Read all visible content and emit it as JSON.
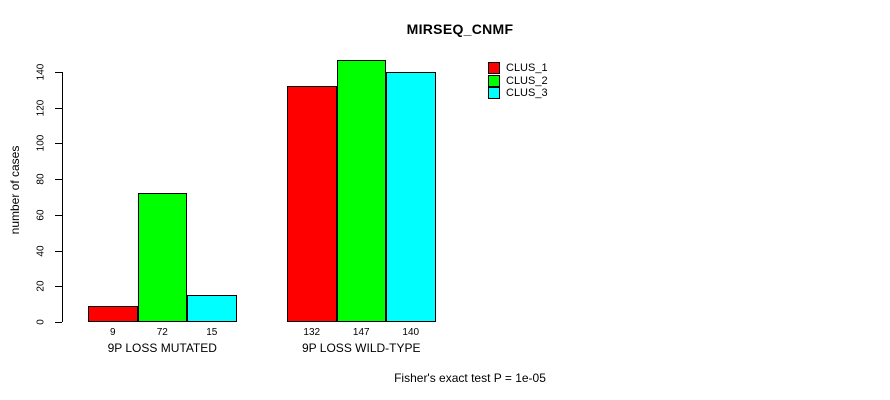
{
  "chart_data": {
    "type": "bar",
    "title": "MIRSEQ_CNMF",
    "categories": [
      "9P LOSS MUTATED",
      "9P LOSS WILD-TYPE"
    ],
    "series": [
      {
        "name": "CLUS_1",
        "color": "#ff0000",
        "values": [
          9,
          132
        ]
      },
      {
        "name": "CLUS_2",
        "color": "#00ff00",
        "values": [
          72,
          147
        ]
      },
      {
        "name": "CLUS_3",
        "color": "#00ffff",
        "values": [
          15,
          140
        ]
      }
    ],
    "xlabel": "",
    "ylabel": "number of cases",
    "ylim": [
      0,
      147
    ],
    "yticks": [
      0,
      20,
      40,
      60,
      80,
      100,
      120,
      140
    ],
    "bar_value_labels": [
      [
        9,
        72,
        15
      ],
      [
        132,
        147,
        140
      ]
    ],
    "legend_position": "right-of-plot",
    "legend_border": false,
    "grid": false,
    "annotation": "Fisher's exact test P = 1e-05",
    "axis_color": "#000000",
    "bar_border_color": "#000000",
    "background_color": "#ffffff"
  }
}
